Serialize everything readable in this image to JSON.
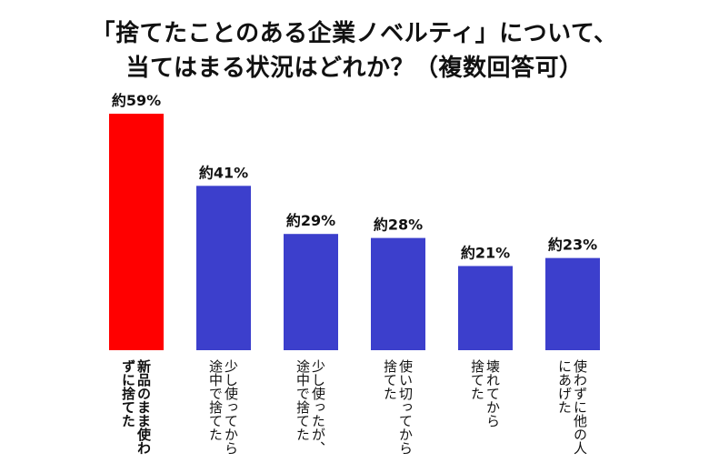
{
  "title": {
    "line1": "「捨てたことのある企業ノベルティ」について、",
    "line2": "当てはまる状況はどれか？（複数回答可）"
  },
  "colors": {
    "highlight": "#ff0000",
    "bar": "#3c3fcc",
    "text": "#111111"
  },
  "chart_data": {
    "type": "bar",
    "title": "「捨てたことのある企業ノベルティ」について、当てはまる状況はどれか？（複数回答可）",
    "categories": [
      "新品のまま使わずに捨てた",
      "少し使ってから途中で捨てた",
      "少し使ったが、途中で捨てた",
      "使い切ってから捨てた",
      "壊れてから捨てた",
      "使わずに他の人にあげた"
    ],
    "label_lines": [
      [
        "新品のまま使わ",
        "ずに捨てた"
      ],
      [
        "少し使ってから",
        "途中で捨てた"
      ],
      [
        "少し使ったが、",
        "途中で捨てた"
      ],
      [
        "使い切ってから",
        "捨てた"
      ],
      [
        "壊れてから",
        "捨てた"
      ],
      [
        "使わずに他の人",
        "にあげた"
      ]
    ],
    "values": [
      59,
      41,
      29,
      28,
      21,
      23
    ],
    "value_labels": [
      "約59%",
      "約41%",
      "約29%",
      "約28%",
      "約21%",
      "約23%"
    ],
    "unit": "%",
    "highlight_index": 0,
    "ylim": [
      0,
      59
    ],
    "grid": false,
    "legend": "none"
  }
}
